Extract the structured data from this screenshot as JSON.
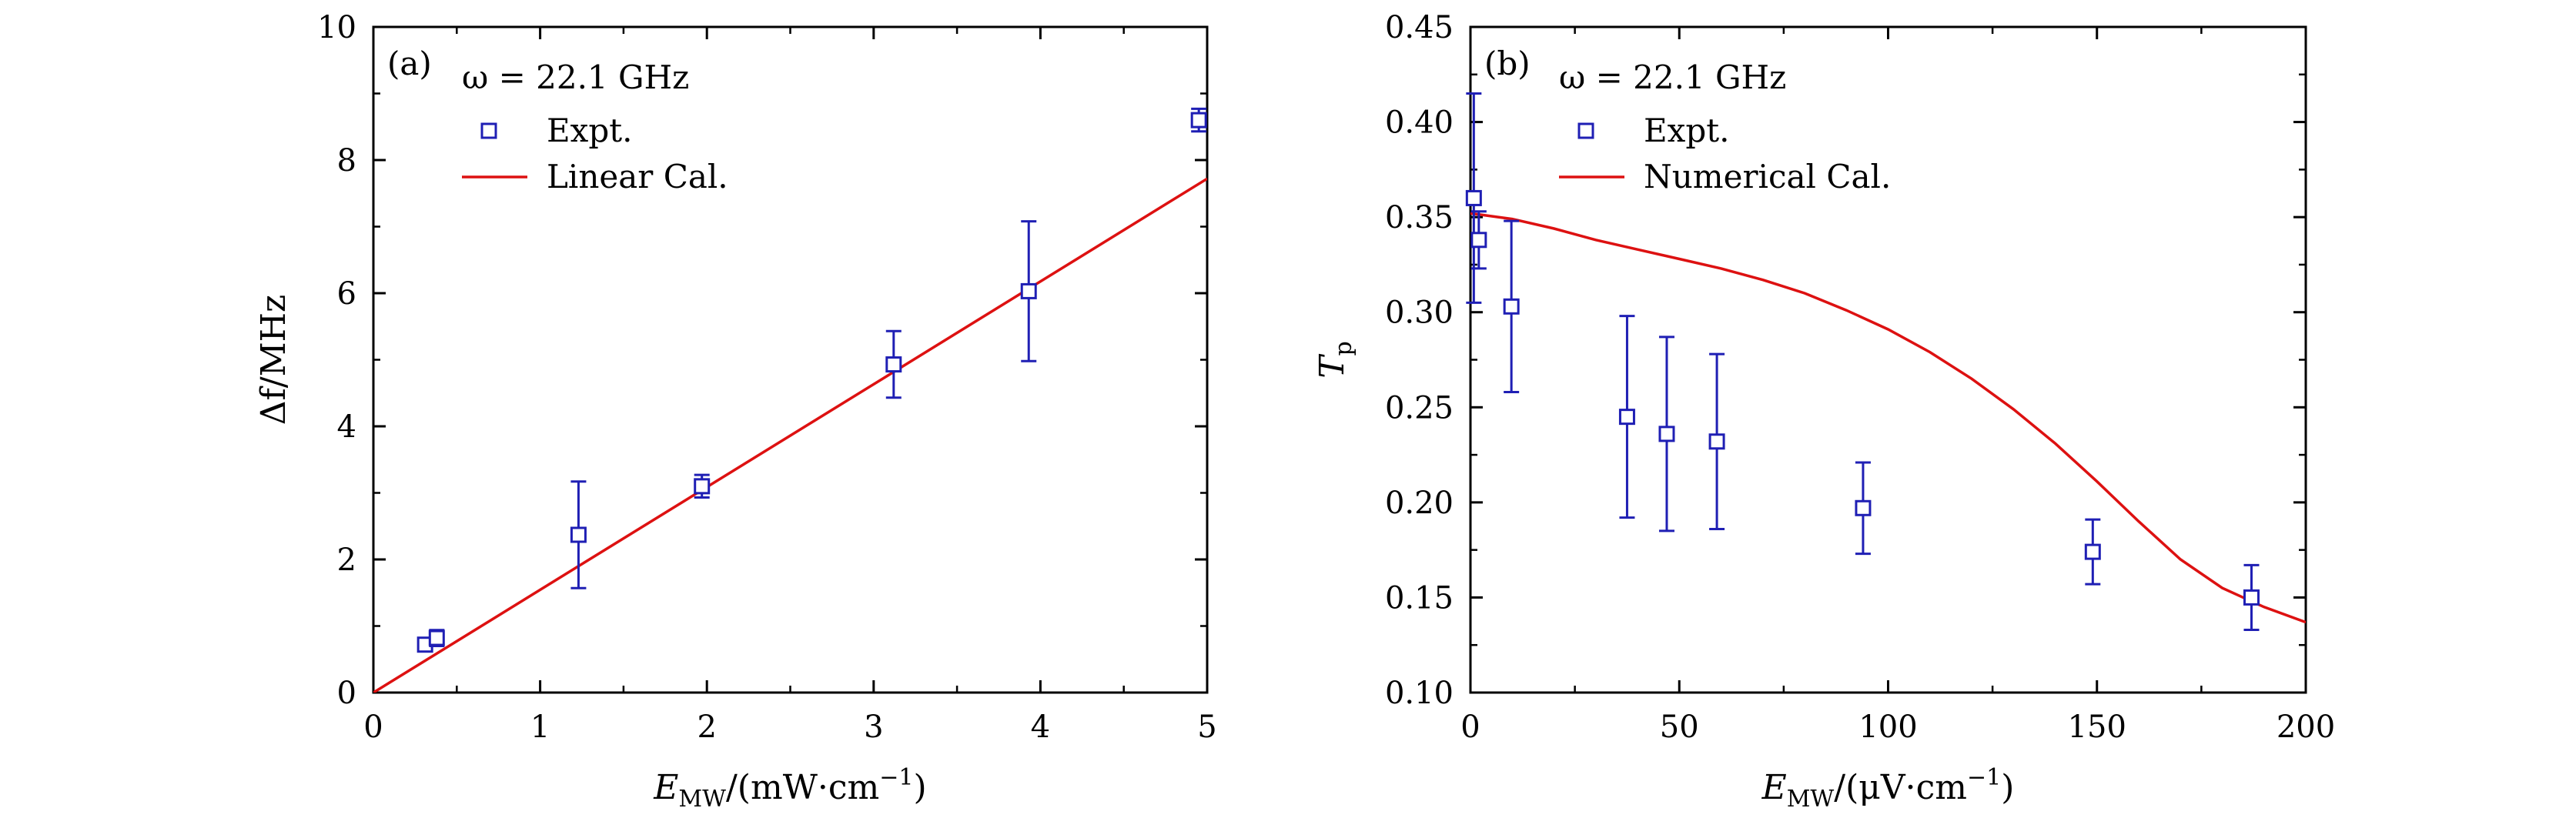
{
  "chart_data": [
    {
      "type": "scatter",
      "panel_label": "(a)",
      "annotation": "ω = 22.1 GHz",
      "xlabel_main": "E",
      "xlabel_sub": "MW",
      "xlabel_unit": "/(mW·cm",
      "xlabel_exp": "−1",
      "xlabel_close": ")",
      "ylabel": "Δf/MHz",
      "xlim": [
        0,
        5
      ],
      "ylim": [
        0,
        10
      ],
      "xticks": [
        0,
        1,
        2,
        3,
        4,
        5
      ],
      "yticks": [
        0,
        2,
        4,
        6,
        8,
        10
      ],
      "ytick_decimals": 0,
      "legend_position": "top-left",
      "colors": {
        "marker": "#1f1fb4",
        "line": "#dd1111",
        "axis": "#000000"
      },
      "series": [
        {
          "name": "Expt.",
          "kind": "scatter-errorbar",
          "x": [
            0.31,
            0.38,
            1.23,
            1.97,
            3.12,
            3.93,
            4.95
          ],
          "y": [
            0.72,
            0.82,
            2.37,
            3.1,
            4.93,
            6.03,
            8.6
          ],
          "yerr": [
            0.06,
            0.12,
            0.8,
            0.17,
            0.5,
            1.05,
            0.17
          ]
        },
        {
          "name": "Linear Cal.",
          "kind": "line",
          "x": [
            0,
            5
          ],
          "y": [
            0,
            7.72
          ]
        }
      ]
    },
    {
      "type": "scatter",
      "panel_label": "(b)",
      "annotation": "ω = 22.1 GHz",
      "xlabel_main": "E",
      "xlabel_sub": "MW",
      "xlabel_unit": "/(μV·cm",
      "xlabel_exp": "−1",
      "xlabel_close": ")",
      "ylabel_main": "T",
      "ylabel_sub": "p",
      "xlim": [
        0,
        200
      ],
      "ylim": [
        0.1,
        0.45
      ],
      "xticks": [
        0,
        50,
        100,
        150,
        200
      ],
      "yticks": [
        0.1,
        0.15,
        0.2,
        0.25,
        0.3,
        0.35,
        0.4,
        0.45
      ],
      "ytick_decimals": 2,
      "legend_position": "top-left",
      "colors": {
        "marker": "#1f1fb4",
        "line": "#dd1111",
        "axis": "#000000"
      },
      "series": [
        {
          "name": "Expt.",
          "kind": "scatter-errorbar",
          "x": [
            0.8,
            2.0,
            9.8,
            37.5,
            47.0,
            59.0,
            94.0,
            149.0,
            187.0
          ],
          "y": [
            0.36,
            0.338,
            0.303,
            0.245,
            0.236,
            0.232,
            0.197,
            0.174,
            0.15
          ],
          "yerr": [
            0.055,
            0.015,
            0.045,
            0.053,
            0.051,
            0.046,
            0.024,
            0.017,
            0.017
          ]
        },
        {
          "name": "Numerical Cal.",
          "kind": "line",
          "x": [
            0,
            10,
            20,
            30,
            40,
            50,
            60,
            70,
            80,
            90,
            100,
            110,
            120,
            130,
            140,
            150,
            160,
            170,
            180,
            190,
            200
          ],
          "y": [
            0.352,
            0.349,
            0.344,
            0.338,
            0.333,
            0.328,
            0.323,
            0.317,
            0.31,
            0.301,
            0.291,
            0.279,
            0.265,
            0.249,
            0.231,
            0.211,
            0.19,
            0.17,
            0.155,
            0.145,
            0.137
          ]
        }
      ]
    }
  ]
}
